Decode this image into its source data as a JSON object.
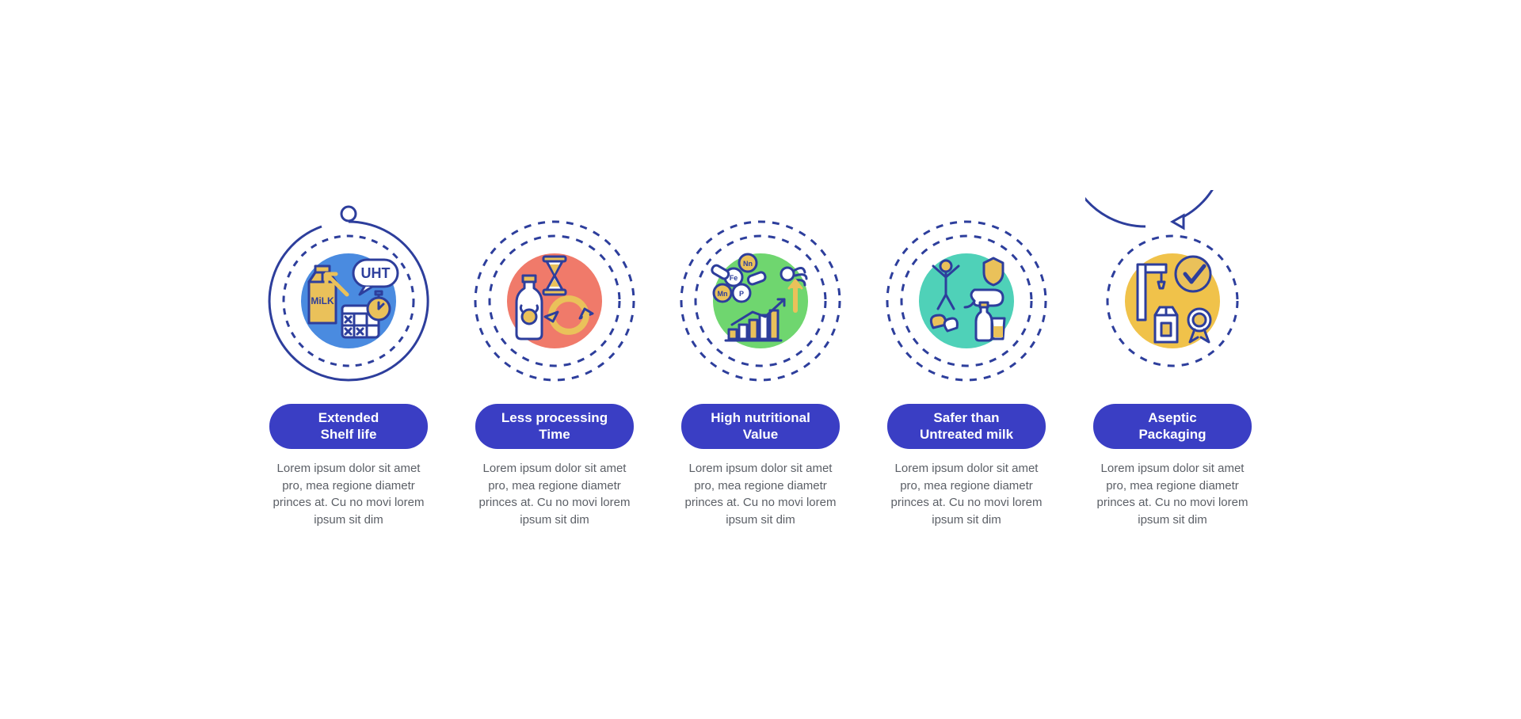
{
  "type": "infographic",
  "layout": "horizontal-5",
  "background_color": "#ffffff",
  "stroke_primary": "#2d3e9c",
  "pill_color": "#3a3ec4",
  "pill_text_color": "#ffffff",
  "desc_color": "#5b5f66",
  "icon_line_color": "#2d3e9c",
  "icon_accent_fill": "#eac15a",
  "ring_stroke_width": 3,
  "ring_outer_r": 100,
  "ring_inner_r": 82,
  "blob_r": 60,
  "items": [
    {
      "id": "shelf-life",
      "title": "Extended\nShelf life",
      "desc": "Lorem ipsum dolor sit amet pro, mea regione diametr princes at. Cu no movi lorem ipsum sit dim",
      "blob_color": "#4a8be0",
      "icon": "uht-milk",
      "cap": "start-dot"
    },
    {
      "id": "processing-time",
      "title": "Less processing\nTime",
      "desc": "Lorem ipsum dolor sit amet pro, mea regione diametr princes at. Cu no movi lorem ipsum sit dim",
      "blob_color": "#f07a6a",
      "icon": "hourglass-cycle",
      "cap": "none"
    },
    {
      "id": "nutritional-value",
      "title": "High nutritional\nValue",
      "desc": "Lorem ipsum dolor sit amet pro, mea regione diametr princes at. Cu no movi lorem ipsum sit dim",
      "blob_color": "#6fd66f",
      "icon": "nutrients-chart",
      "cap": "none"
    },
    {
      "id": "safer",
      "title": "Safer than\nUntreated milk",
      "desc": "Lorem ipsum dolor sit amet pro, mea regione diametr princes at. Cu no movi lorem ipsum sit dim",
      "blob_color": "#4fd1b8",
      "icon": "safe-person",
      "cap": "none"
    },
    {
      "id": "aseptic",
      "title": "Aseptic\nPackaging",
      "desc": "Lorem ipsum dolor sit amet pro, mea regione diametr princes at. Cu no movi lorem ipsum sit dim",
      "blob_color": "#f0c24a",
      "icon": "packaging-check",
      "cap": "end-arrow"
    }
  ]
}
